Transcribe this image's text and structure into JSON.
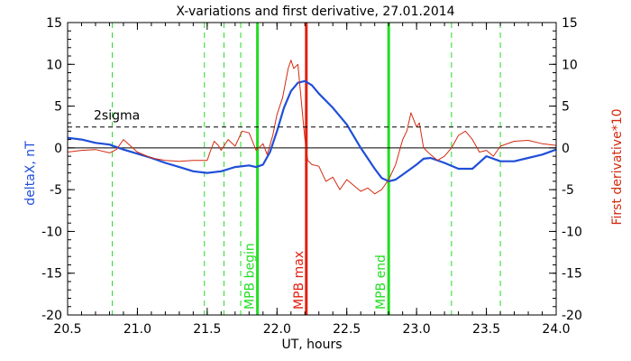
{
  "chart_data": {
    "type": "line",
    "title": "X-variations and first derivative, 27.01.2014",
    "xlabel": "UT, hours",
    "ylabel_left": "deltaX, nT",
    "ylabel_right": "First derivative*10",
    "xlim": [
      20.5,
      24.0
    ],
    "ylim": [
      -20,
      15
    ],
    "xticks": [
      "20.5",
      "21.0",
      "21.5",
      "22.0",
      "22.5",
      "23.0",
      "23.5",
      "24.0"
    ],
    "yticks": [
      "-20",
      "-15",
      "-10",
      "-5",
      "0",
      "5",
      "10",
      "15"
    ],
    "threshold": {
      "label": "2sigma",
      "value": 2.5
    },
    "colors": {
      "deltaX": "#1f4fd8",
      "derivative": "#d42a10",
      "marker_green": "#22dd22",
      "marker_red": "#e02010"
    },
    "series": [
      {
        "name": "deltaX",
        "axis": "left",
        "x": [
          20.5,
          20.6,
          20.7,
          20.8,
          20.9,
          21.0,
          21.1,
          21.2,
          21.3,
          21.4,
          21.5,
          21.6,
          21.7,
          21.8,
          21.85,
          21.9,
          21.95,
          22.0,
          22.05,
          22.1,
          22.15,
          22.2,
          22.25,
          22.3,
          22.4,
          22.5,
          22.6,
          22.7,
          22.75,
          22.8,
          22.85,
          22.9,
          23.0,
          23.05,
          23.1,
          23.2,
          23.3,
          23.4,
          23.5,
          23.6,
          23.7,
          23.8,
          23.9,
          24.0
        ],
        "y": [
          1.2,
          1.0,
          0.6,
          0.4,
          -0.2,
          -0.7,
          -1.2,
          -1.8,
          -2.3,
          -2.8,
          -3.0,
          -2.8,
          -2.3,
          -2.1,
          -2.3,
          -2.0,
          -0.5,
          2.0,
          4.8,
          6.8,
          7.8,
          8.0,
          7.5,
          6.5,
          4.8,
          2.8,
          0.0,
          -2.5,
          -3.6,
          -4.0,
          -3.8,
          -3.2,
          -2.0,
          -1.3,
          -1.2,
          -1.8,
          -2.5,
          -2.5,
          -1.0,
          -1.6,
          -1.6,
          -1.2,
          -0.8,
          -0.2
        ]
      },
      {
        "name": "First derivative*10",
        "axis": "right",
        "x": [
          20.5,
          20.6,
          20.7,
          20.8,
          20.85,
          20.9,
          21.0,
          21.1,
          21.2,
          21.3,
          21.4,
          21.5,
          21.52,
          21.55,
          21.58,
          21.6,
          21.65,
          21.7,
          21.75,
          21.8,
          21.85,
          21.9,
          21.93,
          21.97,
          22.0,
          22.04,
          22.08,
          22.1,
          22.12,
          22.15,
          22.18,
          22.2,
          22.22,
          22.25,
          22.3,
          22.35,
          22.4,
          22.45,
          22.5,
          22.6,
          22.65,
          22.7,
          22.75,
          22.8,
          22.85,
          22.9,
          22.93,
          22.96,
          23.0,
          23.02,
          23.05,
          23.1,
          23.15,
          23.2,
          23.25,
          23.3,
          23.35,
          23.4,
          23.45,
          23.5,
          23.55,
          23.6,
          23.7,
          23.8,
          23.9,
          24.0
        ],
        "y": [
          -0.5,
          -0.3,
          -0.2,
          -0.6,
          -0.2,
          1.0,
          -0.5,
          -1.2,
          -1.5,
          -1.6,
          -1.5,
          -1.5,
          -0.5,
          0.8,
          0.3,
          -0.3,
          1.0,
          0.2,
          2.0,
          1.8,
          -0.3,
          0.5,
          -0.8,
          1.5,
          4.0,
          6.0,
          9.5,
          10.5,
          9.5,
          10.0,
          4.5,
          1.0,
          -1.5,
          -2.0,
          -2.2,
          -4.0,
          -3.5,
          -5.0,
          -3.8,
          -5.2,
          -4.8,
          -5.5,
          -5.0,
          -3.8,
          -2.0,
          1.0,
          2.0,
          4.2,
          2.5,
          3.0,
          0.0,
          -0.8,
          -1.5,
          -1.0,
          0.0,
          1.5,
          2.0,
          1.0,
          -0.5,
          -0.3,
          -1.0,
          0.2,
          0.8,
          0.9,
          0.5,
          0.3
        ]
      }
    ],
    "markers": [
      {
        "x": 20.82,
        "style": "dashed",
        "color": "green",
        "label": ""
      },
      {
        "x": 21.48,
        "style": "dashed",
        "color": "green",
        "label": ""
      },
      {
        "x": 21.62,
        "style": "dashed",
        "color": "green",
        "label": ""
      },
      {
        "x": 21.74,
        "style": "dashed",
        "color": "green",
        "label": ""
      },
      {
        "x": 21.86,
        "style": "solid",
        "color": "green",
        "label": "MPB begin"
      },
      {
        "x": 22.21,
        "style": "solid",
        "color": "red",
        "label": "MPB max"
      },
      {
        "x": 22.8,
        "style": "solid",
        "color": "green",
        "label": "MPB end"
      },
      {
        "x": 23.25,
        "style": "dashed",
        "color": "green",
        "label": ""
      },
      {
        "x": 23.6,
        "style": "dashed",
        "color": "green",
        "label": ""
      }
    ]
  }
}
